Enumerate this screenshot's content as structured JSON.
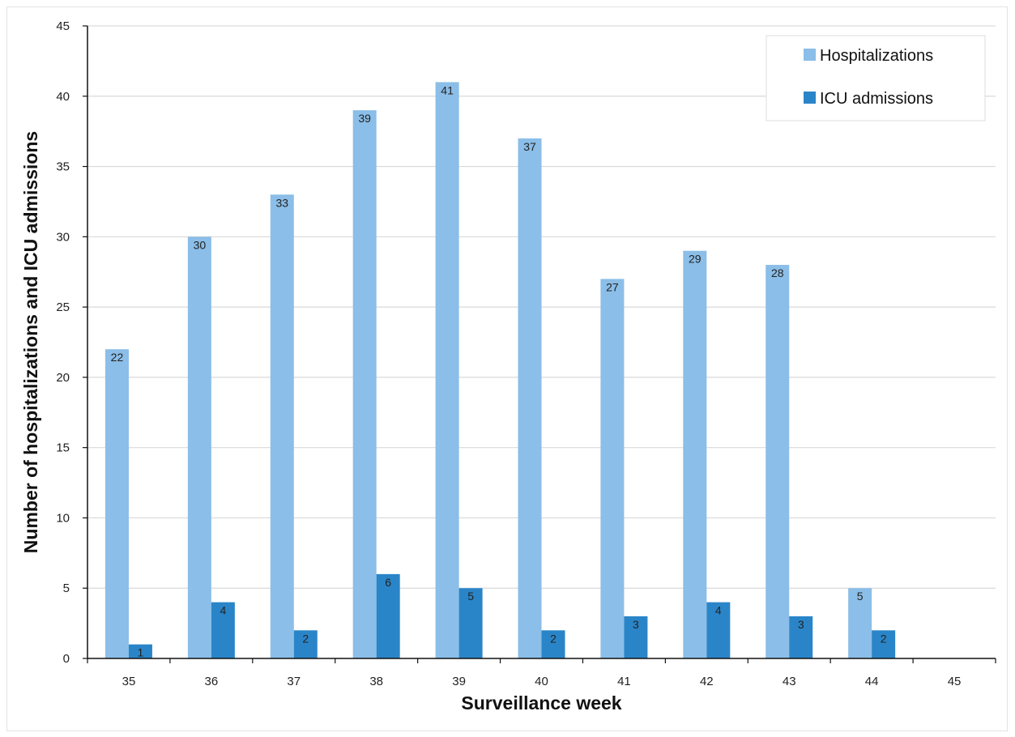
{
  "chart_data": {
    "type": "bar",
    "title": "",
    "xlabel": "Surveillance week",
    "ylabel": "Number of  hospitalizations and ICU admissions",
    "categories": [
      "35",
      "36",
      "37",
      "38",
      "39",
      "40",
      "41",
      "42",
      "43",
      "44",
      "45"
    ],
    "series": [
      {
        "name": "Hospitalizations",
        "values": [
          22,
          30,
          33,
          39,
          41,
          37,
          27,
          29,
          28,
          5,
          0
        ],
        "color": "#8bbee8"
      },
      {
        "name": "ICU admissions",
        "values": [
          1,
          4,
          2,
          6,
          5,
          2,
          3,
          4,
          3,
          2,
          0
        ],
        "color": "#2a85c8"
      }
    ],
    "ylim": [
      0,
      45
    ],
    "yticks": [
      "0",
      "5",
      "10",
      "15",
      "20",
      "25",
      "30",
      "35",
      "40",
      "45"
    ],
    "grid": true,
    "legend": "top-right",
    "data_labels": true
  }
}
